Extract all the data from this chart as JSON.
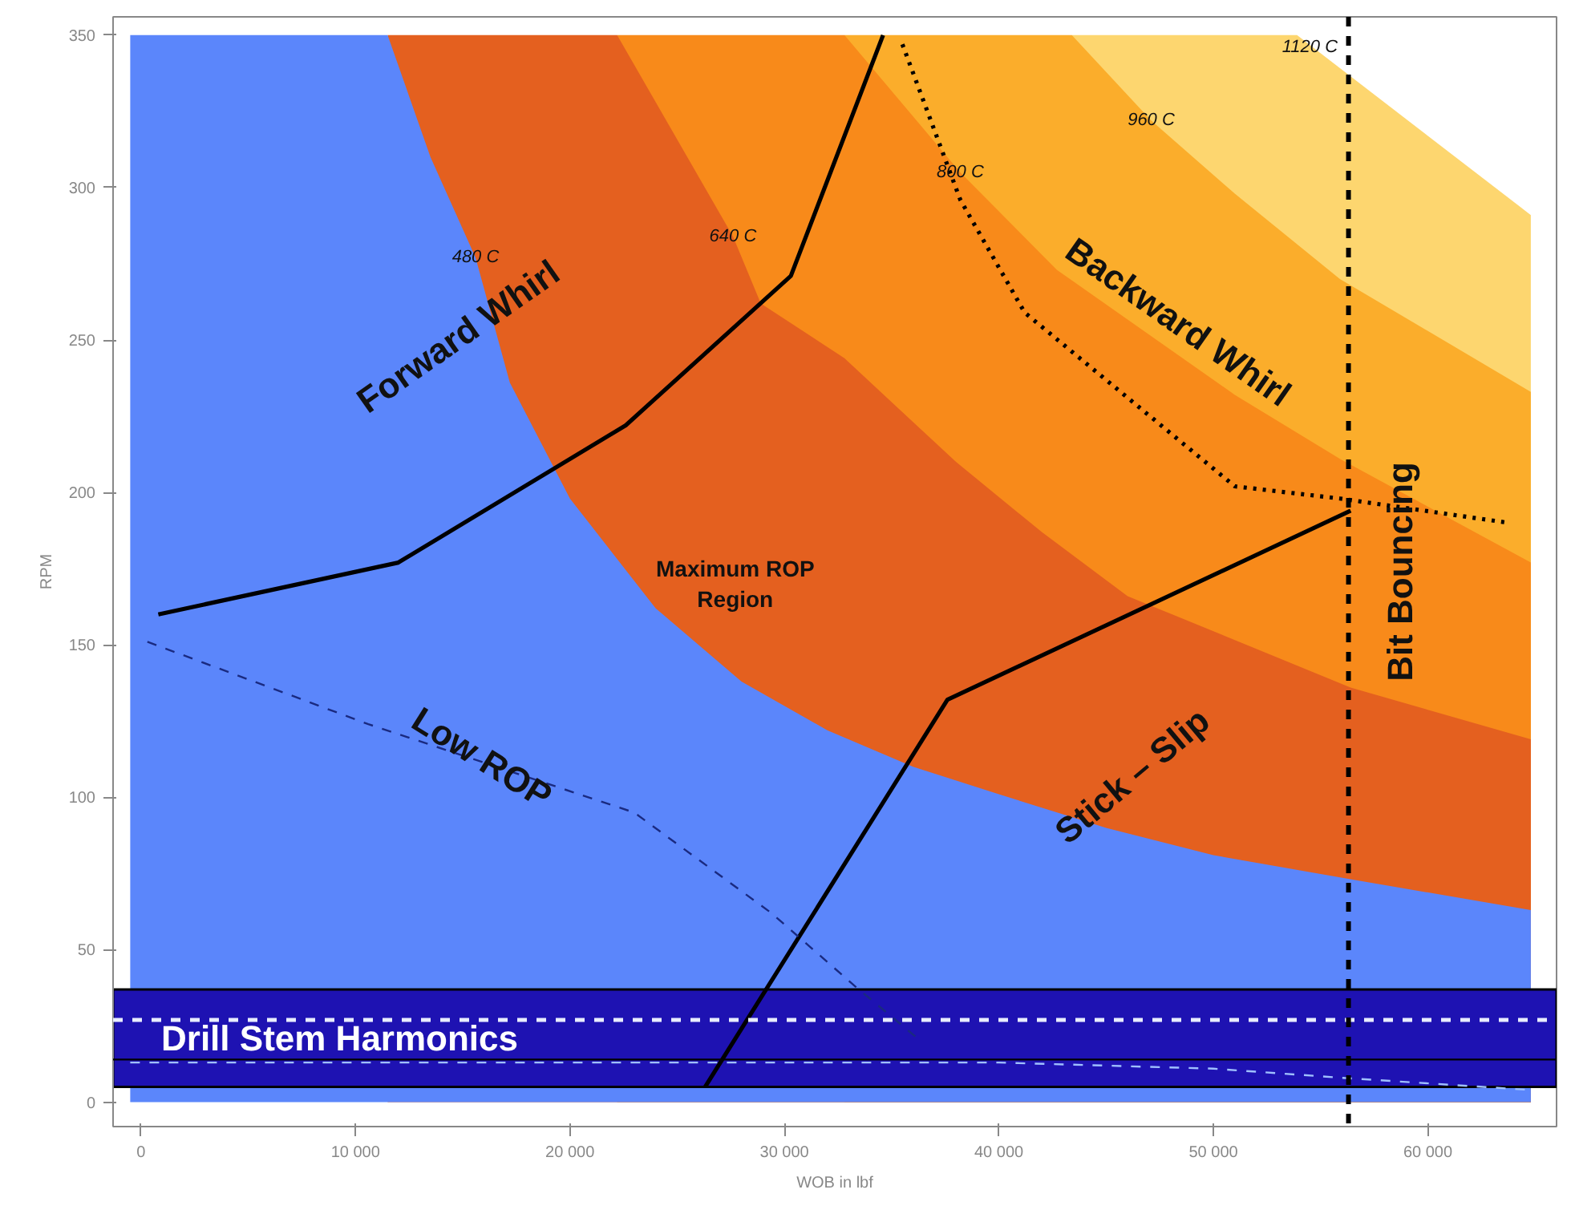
{
  "chart_data": {
    "type": "area",
    "xlabel": "WOB in lbf",
    "ylabel": "RPM",
    "xlim": [
      -1300,
      66000
    ],
    "ylim": [
      -8,
      356
    ],
    "xticks": [
      0,
      {
        "value": 10000,
        "label": "10 000"
      },
      {
        "value": 20000,
        "label": "20 000"
      },
      {
        "value": 30000,
        "label": "30 000"
      },
      {
        "value": 40000,
        "label": "40 000"
      },
      {
        "value": 50000,
        "label": "50 000"
      },
      {
        "value": 60000,
        "label": "60 000"
      }
    ],
    "yticks": [
      0,
      50,
      100,
      150,
      200,
      250,
      300,
      350
    ],
    "grid": false,
    "series": [
      {
        "color": "#fdd66f",
        "x": [
          43400,
          53900,
          64800
        ],
        "values": [
          350,
          350,
          291
        ]
      },
      {
        "color": "#fbad2b",
        "x": [
          32800,
          43400,
          47100,
          51000,
          55900,
          64800
        ],
        "values": [
          350,
          350,
          322,
          298,
          270,
          233
        ]
      },
      {
        "color": "#f88a1a",
        "x": [
          22200,
          32800,
          38200,
          42700,
          51000,
          55900,
          64800
        ],
        "values": [
          350,
          350,
          305,
          273,
          232,
          211,
          177
        ]
      },
      {
        "color": "#e4601f",
        "x": [
          11500,
          22200,
          27600,
          28900,
          32800,
          38000,
          42000,
          46000,
          56400,
          64800
        ],
        "values": [
          350,
          350,
          284,
          262,
          244,
          210,
          187,
          166,
          136,
          119
        ]
      },
      {
        "color": "#5b86fb",
        "x": [
          -500,
          11500,
          13500,
          15600,
          17200,
          20000,
          24000,
          28000,
          32000,
          36000,
          40000,
          45000,
          50000,
          56500,
          64800
        ],
        "values": [
          350,
          350,
          310,
          277,
          236,
          198,
          162,
          138,
          122,
          110,
          101,
          90,
          81,
          73,
          63
        ]
      },
      {
        "type": "line",
        "color": "#000000",
        "line_style": "solid",
        "x": [
          810,
          12000,
          22600,
          30300,
          34600
        ],
        "values": [
          160,
          177,
          222,
          271,
          350
        ]
      },
      {
        "type": "line",
        "color": "#000000",
        "line_style": "solid",
        "x": [
          26300,
          37600,
          56400
        ],
        "values": [
          5,
          132,
          194
        ]
      },
      {
        "type": "line",
        "color": "#000000",
        "line_style": "dotted",
        "x": [
          35500,
          38200,
          41200,
          51000,
          55900,
          63800
        ],
        "values": [
          347,
          296,
          259,
          202,
          198,
          190
        ]
      },
      {
        "type": "line",
        "color": "#1a2a80",
        "line_style": "dashed",
        "x": [
          300,
          10600,
          23000,
          29400,
          33300,
          36200
        ],
        "values": [
          151,
          124,
          95,
          62,
          38,
          21
        ]
      },
      {
        "type": "line",
        "color": "#9fc0ff",
        "line_style": "dashed",
        "x": [
          -500,
          40000,
          50000,
          56000,
          64800
        ],
        "values": [
          13,
          13,
          11,
          8,
          4
        ]
      }
    ],
    "bands": [
      {
        "axis": "y",
        "from": 5,
        "to": 37,
        "label": "Drill Stem Harmonics",
        "color": "#1e12b2"
      }
    ],
    "ref_lines": [
      {
        "axis": "y",
        "value": 27,
        "color": "#e8ecff",
        "line_style": "dashed"
      },
      {
        "axis": "y",
        "value": 14,
        "color": "#000000",
        "line_style": "solid"
      },
      {
        "axis": "x",
        "value": 56300,
        "color": "#000000",
        "line_style": "dashed",
        "label": "Bit Bouncing"
      }
    ],
    "annotations": [
      {
        "text": "480 C",
        "x": 15600,
        "y": 277
      },
      {
        "text": "640 C",
        "x": 27600,
        "y": 284
      },
      {
        "text": "800 C",
        "x": 38200,
        "y": 305
      },
      {
        "text": "960 C",
        "x": 47100,
        "y": 322
      },
      {
        "text": "1120 C",
        "x": 54500,
        "y": 346
      },
      "Forward Whirl",
      "Backward Whirl",
      "Maximum ROP\nRegion",
      {
        "text": "Low ROP",
        "x": 15900,
        "y": 113
      },
      "Stick – Slip"
    ]
  }
}
